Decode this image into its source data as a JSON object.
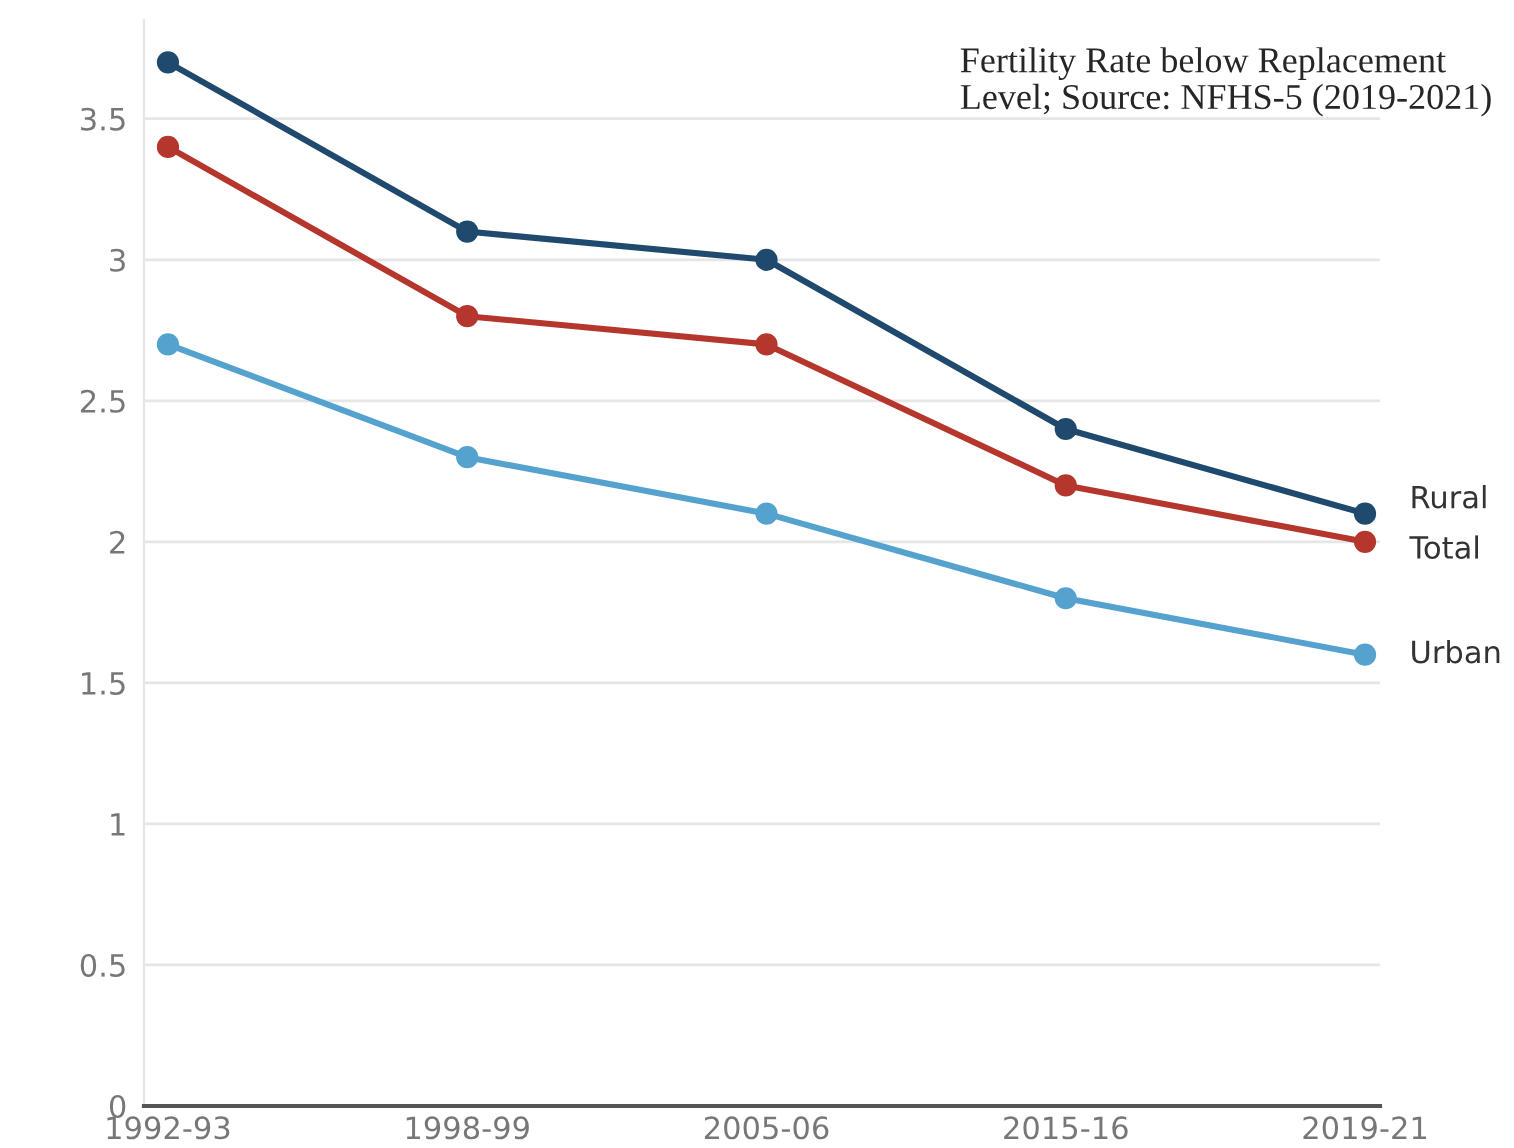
{
  "chart_data": {
    "type": "line",
    "categories": [
      "1992-93",
      "1998-99",
      "2005-06",
      "2015-16",
      "2019-21"
    ],
    "series": [
      {
        "name": "Rural",
        "color": "#1f4a6e",
        "values": [
          3.7,
          3.1,
          3.0,
          2.4,
          2.1
        ]
      },
      {
        "name": "Total",
        "color": "#b5362c",
        "values": [
          3.4,
          2.8,
          2.7,
          2.2,
          2.0
        ]
      },
      {
        "name": "Urban",
        "color": "#55a2cf",
        "values": [
          2.7,
          2.3,
          2.1,
          1.8,
          1.6
        ]
      }
    ],
    "ylim": [
      0,
      3.85
    ],
    "yticks": [
      0,
      0.5,
      1,
      1.5,
      2,
      2.5,
      3,
      3.5
    ],
    "grid": "y",
    "marker": "circle",
    "line_style": "solid",
    "annotations": [
      "Fertility Rate below Replacement Level; Source: NFHS-5 (2019-2021)"
    ]
  }
}
